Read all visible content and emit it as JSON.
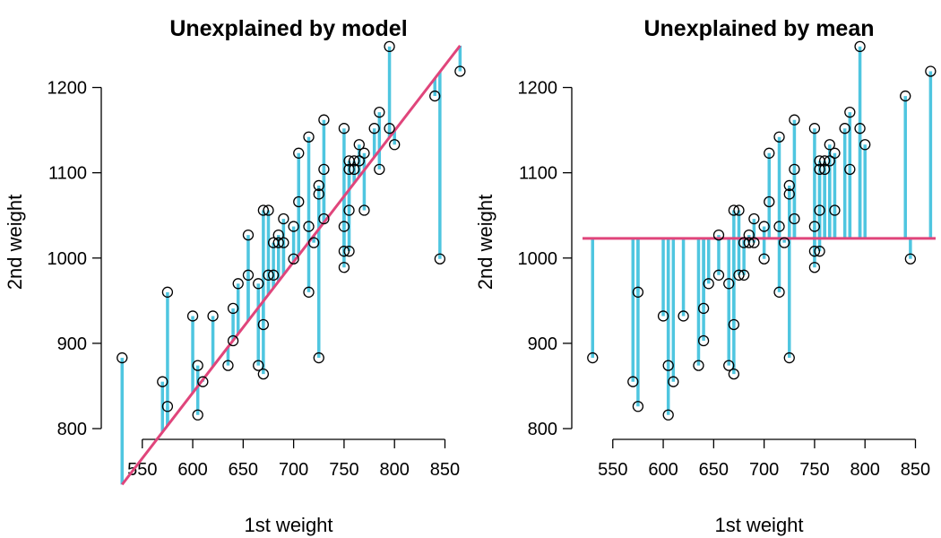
{
  "colors": {
    "residual": "#4fc6e0",
    "fit": "#e0457b",
    "point": "#000000"
  },
  "chart_data": [
    {
      "type": "scatter",
      "title": "Unexplained by model",
      "xlabel": "1st weight",
      "ylabel": "2nd weight",
      "xlim": [
        520,
        870
      ],
      "ylim": [
        800,
        1250
      ],
      "x_ticks": [
        550,
        600,
        650,
        700,
        750,
        800,
        850
      ],
      "y_ticks": [
        800,
        900,
        1000,
        1100,
        1200
      ],
      "reference": {
        "kind": "regression",
        "intercept": -79.7,
        "slope": 1.5361
      },
      "x": [
        530,
        570,
        575,
        575,
        600,
        605,
        605,
        610,
        620,
        635,
        640,
        640,
        645,
        655,
        655,
        665,
        665,
        670,
        670,
        670,
        675,
        675,
        680,
        680,
        685,
        685,
        690,
        690,
        700,
        700,
        705,
        705,
        715,
        715,
        715,
        720,
        725,
        725,
        725,
        730,
        730,
        730,
        750,
        750,
        750,
        750,
        755,
        755,
        755,
        755,
        760,
        760,
        765,
        765,
        770,
        770,
        780,
        785,
        785,
        795,
        795,
        800,
        840,
        845,
        865
      ],
      "y": [
        883,
        855,
        960,
        826,
        932,
        874,
        816,
        855,
        932,
        874,
        941,
        903,
        970,
        1027,
        980,
        970,
        874,
        922,
        864,
        1056,
        980,
        1056,
        1018,
        980,
        1027,
        1018,
        1046,
        1018,
        1037,
        999,
        1123,
        1066,
        1142,
        960,
        1037,
        1018,
        1085,
        1075,
        883,
        1162,
        1104,
        1046,
        1152,
        1037,
        1008,
        989,
        1104,
        1056,
        1114,
        1008,
        1114,
        1104,
        1133,
        1114,
        1123,
        1056,
        1152,
        1171,
        1104,
        1248,
        1152,
        1133,
        1190,
        999,
        1219
      ]
    },
    {
      "type": "scatter",
      "title": "Unexplained by mean",
      "xlabel": "1st weight",
      "ylabel": "2nd weight",
      "xlim": [
        520,
        870
      ],
      "ylim": [
        800,
        1250
      ],
      "x_ticks": [
        550,
        600,
        650,
        700,
        750,
        800,
        850
      ],
      "y_ticks": [
        800,
        900,
        1000,
        1100,
        1200
      ],
      "reference": {
        "kind": "mean",
        "value": 1023
      },
      "x": [
        530,
        570,
        575,
        575,
        600,
        605,
        605,
        610,
        620,
        635,
        640,
        640,
        645,
        655,
        655,
        665,
        665,
        670,
        670,
        670,
        675,
        675,
        680,
        680,
        685,
        685,
        690,
        690,
        700,
        700,
        705,
        705,
        715,
        715,
        715,
        720,
        725,
        725,
        725,
        730,
        730,
        730,
        750,
        750,
        750,
        750,
        755,
        755,
        755,
        755,
        760,
        760,
        765,
        765,
        770,
        770,
        780,
        785,
        785,
        795,
        795,
        800,
        840,
        845,
        865
      ],
      "y": [
        883,
        855,
        960,
        826,
        932,
        874,
        816,
        855,
        932,
        874,
        941,
        903,
        970,
        1027,
        980,
        970,
        874,
        922,
        864,
        1056,
        980,
        1056,
        1018,
        980,
        1027,
        1018,
        1046,
        1018,
        1037,
        999,
        1123,
        1066,
        1142,
        960,
        1037,
        1018,
        1085,
        1075,
        883,
        1162,
        1104,
        1046,
        1152,
        1037,
        1008,
        989,
        1104,
        1056,
        1114,
        1008,
        1114,
        1104,
        1133,
        1114,
        1123,
        1056,
        1152,
        1171,
        1104,
        1248,
        1152,
        1133,
        1190,
        999,
        1219
      ]
    }
  ]
}
